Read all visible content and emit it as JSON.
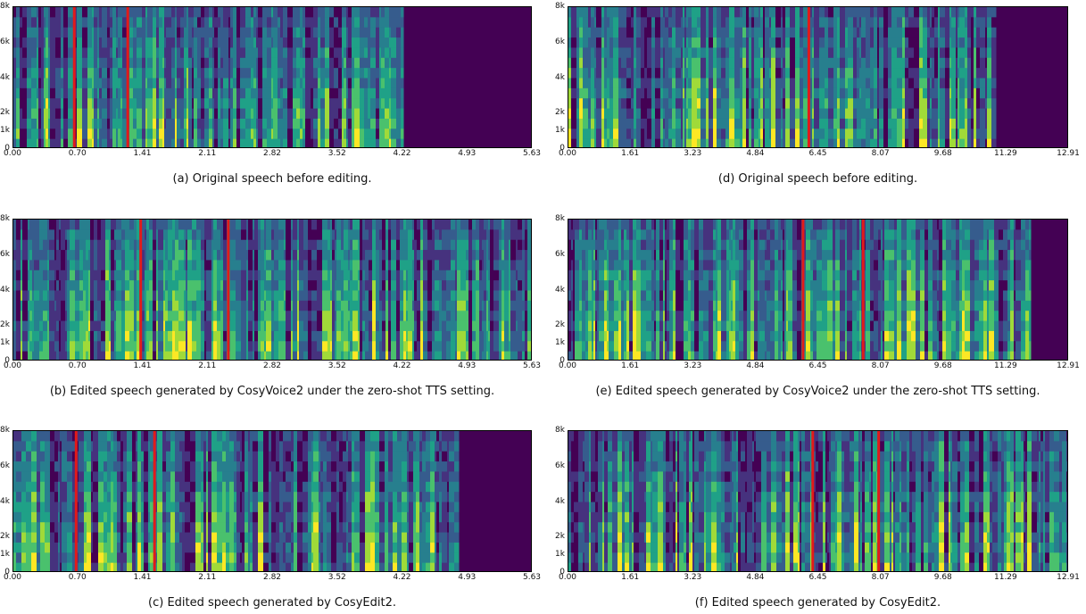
{
  "colors": {
    "bg": "#440154",
    "marker": "#e21a1a"
  },
  "y_ticks": [
    {
      "label": "8k",
      "v": 8
    },
    {
      "label": "6k",
      "v": 6
    },
    {
      "label": "4k",
      "v": 4
    },
    {
      "label": "2k",
      "v": 2
    },
    {
      "label": "1k",
      "v": 1
    },
    {
      "label": "0",
      "v": 0
    }
  ],
  "panels": [
    {
      "id": "a",
      "caption": "(a) Original speech before editing.",
      "x_ticks": [
        "0.00",
        "0.70",
        "1.41",
        "2.11",
        "2.82",
        "3.52",
        "4.22",
        "4.93",
        "5.63"
      ],
      "x_max": 5.63,
      "speech_end": 4.22,
      "markers": [
        0.66,
        1.24
      ],
      "seed": 11
    },
    {
      "id": "b",
      "caption": "(b) Edited speech generated by CosyVoice2 under the zero-shot TTS setting.",
      "x_ticks": [
        "0.00",
        "0.70",
        "1.41",
        "2.11",
        "2.82",
        "3.52",
        "4.22",
        "4.93",
        "5.63"
      ],
      "x_max": 5.63,
      "speech_end": 5.63,
      "markers": [
        1.38,
        2.33
      ],
      "seed": 23
    },
    {
      "id": "c",
      "caption": "(c) Edited speech generated by CosyEdit2.",
      "x_ticks": [
        "0.00",
        "0.70",
        "1.41",
        "2.11",
        "2.82",
        "3.52",
        "4.22",
        "4.93",
        "5.63"
      ],
      "x_max": 5.63,
      "speech_end": 4.78,
      "markers": [
        0.68,
        1.53
      ],
      "seed": 37
    },
    {
      "id": "d",
      "caption": "(d) Original speech before editing.",
      "x_ticks": [
        "0.00",
        "1.61",
        "3.23",
        "4.84",
        "6.45",
        "8.07",
        "9.68",
        "11.29",
        "12.91"
      ],
      "x_max": 12.91,
      "speech_end": 10.95,
      "markers": [
        6.2
      ],
      "seed": 41
    },
    {
      "id": "e",
      "caption": "(e) Edited speech generated by CosyVoice2 under the zero-shot TTS setting.",
      "x_ticks": [
        "0.00",
        "1.61",
        "3.23",
        "4.84",
        "6.45",
        "8.07",
        "9.68",
        "11.29",
        "12.91"
      ],
      "x_max": 12.91,
      "speech_end": 11.9,
      "markers": [
        6.05,
        7.6
      ],
      "seed": 53
    },
    {
      "id": "f",
      "caption": "(f) Edited speech generated by CosyEdit2.",
      "x_ticks": [
        "0.00",
        "1.61",
        "3.23",
        "4.84",
        "6.45",
        "8.07",
        "9.68",
        "11.29",
        "12.91"
      ],
      "x_max": 12.91,
      "speech_end": 12.91,
      "markers": [
        6.3,
        8.0
      ],
      "seed": 67
    }
  ]
}
